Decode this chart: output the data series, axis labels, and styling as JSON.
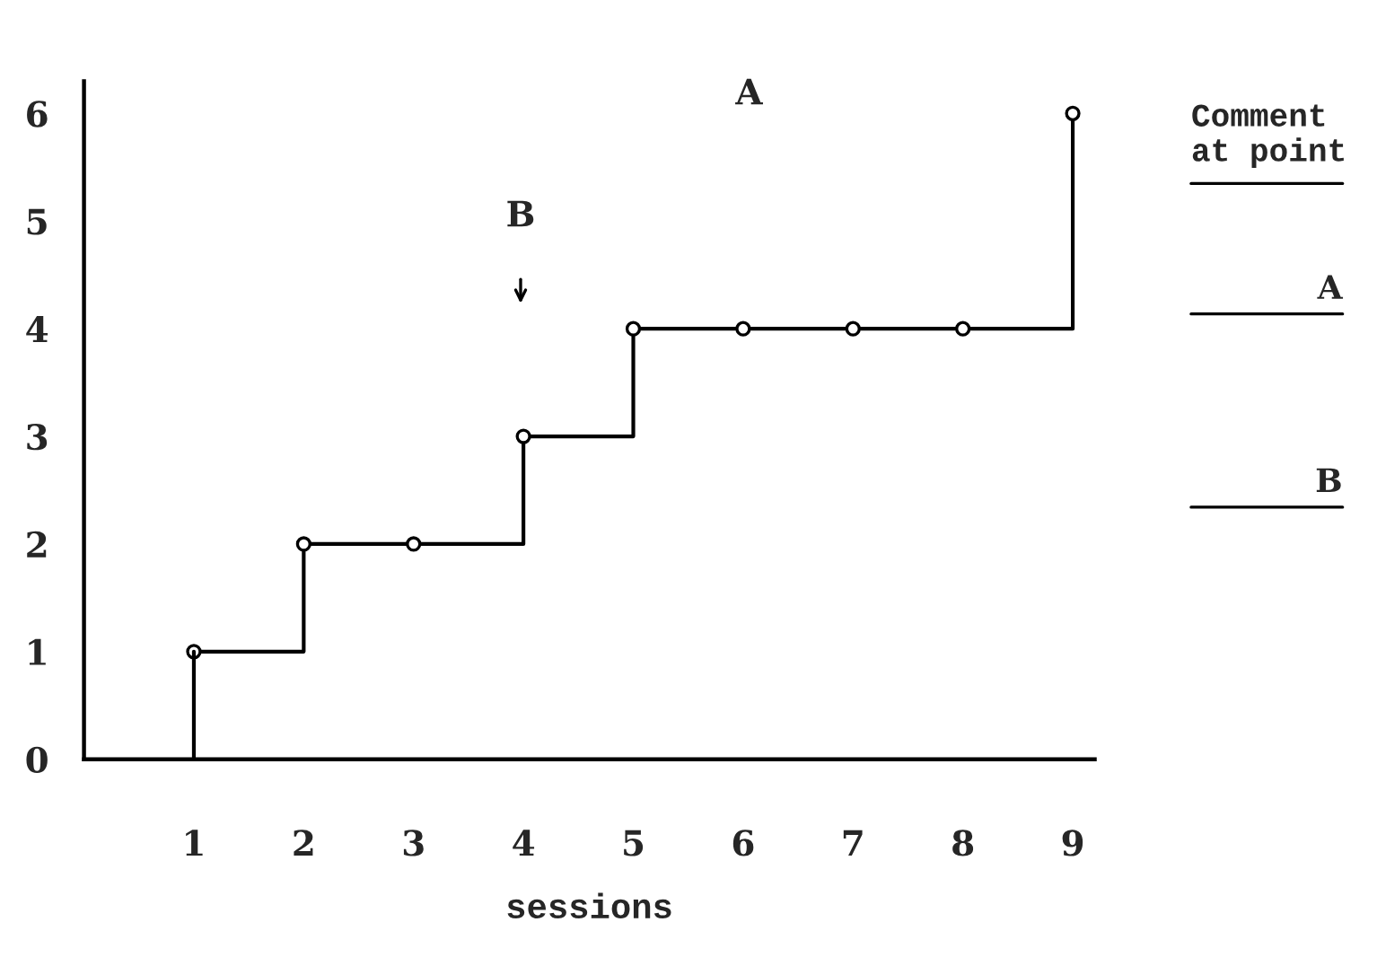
{
  "chart_data": {
    "type": "step",
    "xlabel": "sessions",
    "x": [
      1,
      2,
      3,
      4,
      5,
      6,
      7,
      8,
      9
    ],
    "series": [
      {
        "color": "#000000",
        "values": [
          1,
          2,
          2,
          3,
          4,
          4,
          4,
          4,
          6
        ]
      },
      {
        "type": "line",
        "marker": "none",
        "color": "#000000",
        "x": [
          1,
          1
        ],
        "values": [
          0,
          1
        ]
      }
    ],
    "marker": "circle",
    "line_style": "solid",
    "grid": false,
    "legend": false,
    "xlim": [
      0,
      9.2
    ],
    "xticks": [
      1,
      2,
      3,
      4,
      5,
      6,
      7,
      8,
      9
    ],
    "ylim": [
      0,
      6.3
    ],
    "yticks": [
      0,
      1,
      2,
      3,
      4,
      5,
      6
    ],
    "annotations": [
      "A",
      "B",
      "Comment at point",
      "A",
      "B"
    ]
  }
}
